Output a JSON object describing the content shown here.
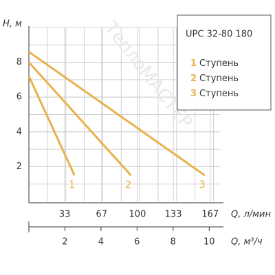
{
  "chart_data": {
    "type": "line",
    "y_label": "H, м",
    "x_label": "Q, л/мин",
    "x2_label": "Q, м³/ч",
    "legend_title": "UPC 32-80 180",
    "watermark": "ТеплоМАСТЕР",
    "xlim": [
      0,
      176
    ],
    "xticks": [
      33,
      67,
      100,
      133,
      167
    ],
    "x2lim": [
      0,
      10.6
    ],
    "x2ticks": [
      2,
      4,
      6,
      8,
      10
    ],
    "ylim": [
      0,
      10
    ],
    "yticks": [
      2,
      4,
      6,
      8
    ],
    "grid": true,
    "legend": "upper right",
    "series": [
      {
        "name": "Ступень",
        "label": "1",
        "color": "#e8b14c",
        "x": [
          0,
          42
        ],
        "values": [
          7.2,
          1.5
        ]
      },
      {
        "name": "Ступень",
        "label": "2",
        "color": "#e8b14c",
        "x": [
          0,
          94
        ],
        "values": [
          8.0,
          1.5
        ]
      },
      {
        "name": "Ступень",
        "label": "3",
        "color": "#e8b14c",
        "x": [
          0,
          162
        ],
        "values": [
          8.6,
          1.5
        ]
      }
    ]
  }
}
